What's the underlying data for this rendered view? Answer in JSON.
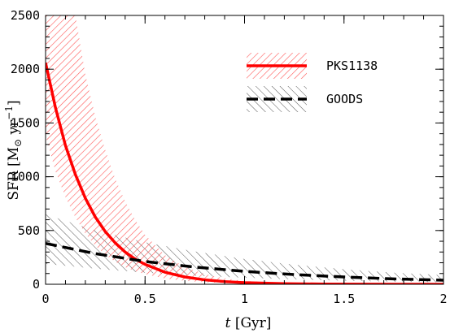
{
  "chart_data": {
    "type": "line",
    "xlabel": {
      "italic": "t",
      "unit": "[Gyr]"
    },
    "ylabel": {
      "prefix": "SFR",
      "unit_open": "[M",
      "unit_sub": "⊙",
      "unit_mid": " yr",
      "unit_sup": "−1",
      "unit_close": "]"
    },
    "xlim": [
      0,
      2
    ],
    "ylim": [
      0,
      2500
    ],
    "xticks": [
      0,
      0.5,
      1,
      1.5,
      2
    ],
    "xtick_labels": [
      "0",
      "0.5",
      "1",
      "1.5",
      "2"
    ],
    "yticks": [
      0,
      500,
      1000,
      1500,
      2000,
      2500
    ],
    "ytick_labels": [
      "0",
      "500",
      "1000",
      "1500",
      "2000",
      "2500"
    ],
    "grid": false,
    "legend_position": "top-right",
    "series": [
      {
        "name": "PKS1138",
        "color": "#ff0000",
        "style": "solid",
        "band_color": "#ff5555",
        "x": [
          0,
          0.05,
          0.1,
          0.15,
          0.2,
          0.25,
          0.3,
          0.35,
          0.4,
          0.45,
          0.5,
          0.6,
          0.7,
          0.8,
          0.9,
          1.0,
          1.2,
          1.4,
          1.6,
          1.8,
          2.0
        ],
        "y": [
          2060,
          1640,
          1290,
          1020,
          800,
          625,
          490,
          385,
          300,
          235,
          185,
          112,
          68,
          41,
          25,
          15,
          6,
          2,
          1,
          0,
          0
        ],
        "upper": [
          2500,
          2500,
          2500,
          2500,
          1950,
          1560,
          1250,
          980,
          770,
          600,
          460,
          270,
          160,
          95,
          55,
          30,
          12,
          5,
          2,
          1,
          0
        ],
        "lower": [
          1380,
          1050,
          810,
          620,
          470,
          360,
          275,
          210,
          160,
          122,
          94,
          55,
          32,
          19,
          11,
          6,
          2,
          1,
          0,
          0,
          0
        ]
      },
      {
        "name": "GOODS",
        "color": "#000000",
        "style": "dashed",
        "band_color": "#555555",
        "x": [
          0,
          0.25,
          0.5,
          0.75,
          1.0,
          1.25,
          1.5,
          1.75,
          2.0
        ],
        "y": [
          380,
          285,
          212,
          160,
          120,
          90,
          68,
          50,
          38
        ],
        "upper": [
          650,
          500,
          390,
          305,
          235,
          182,
          140,
          108,
          85
        ],
        "lower": [
          190,
          145,
          108,
          80,
          60,
          45,
          33,
          25,
          18
        ]
      }
    ]
  }
}
